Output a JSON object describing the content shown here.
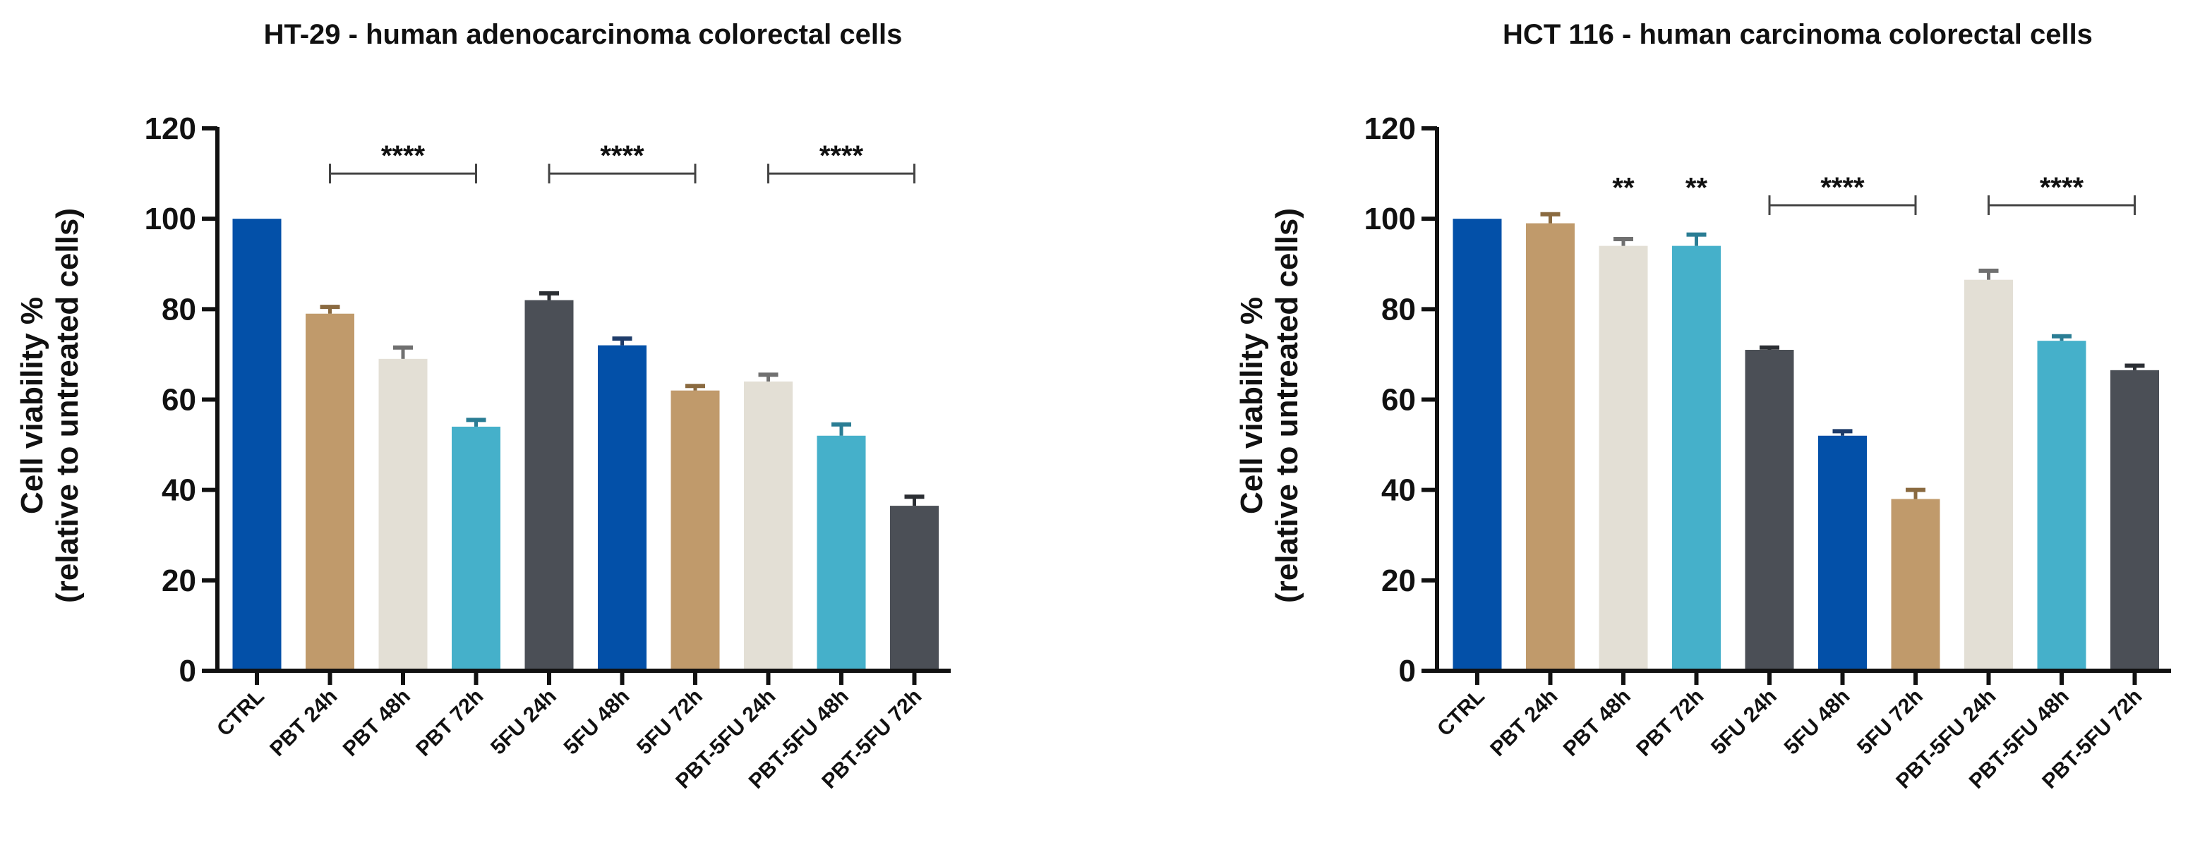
{
  "chart_data": [
    {
      "type": "bar",
      "title": "HT-29 - human adenocarcinoma colorectal cells",
      "ylabel_line1": "Cell viability %",
      "ylabel_line2": "(relative to untreated cells)",
      "xlabel": "",
      "ylim": [
        0,
        120
      ],
      "yticks": [
        0,
        20,
        40,
        60,
        80,
        100,
        120
      ],
      "categories": [
        "CTRL",
        "PBT 24h",
        "PBT 48h",
        "PBT 72h",
        "5FU 24h",
        "5FU 48h",
        "5FU 72h",
        "PBT-5FU 24h",
        "PBT-5FU 48h",
        "PBT-5FU 72h"
      ],
      "values": [
        100,
        79,
        69,
        54,
        82,
        72,
        62,
        64,
        52,
        36.5
      ],
      "errors": [
        0,
        1.5,
        2.5,
        1.5,
        1.5,
        1.5,
        1,
        1.5,
        2.5,
        2
      ],
      "colors": [
        "#0350a8",
        "#c09a6b",
        "#e3dfd5",
        "#45b0ca",
        "#4b4f56",
        "#0350a8",
        "#c09a6b",
        "#e3dfd5",
        "#45b0ca",
        "#4b4f56"
      ],
      "error_colors": [
        "#0350a8",
        "#8a6a40",
        "#707070",
        "#2a7d94",
        "#2b2e33",
        "#1e3c6a",
        "#8a6a40",
        "#707070",
        "#2a7d94",
        "#2b2e33"
      ],
      "annotations": [
        {
          "text": "****",
          "from": 1,
          "to": 3,
          "y": 110
        },
        {
          "text": "****",
          "from": 4,
          "to": 6,
          "y": 110
        },
        {
          "text": "****",
          "from": 7,
          "to": 9,
          "y": 110
        }
      ]
    },
    {
      "type": "bar",
      "title": "HCT 116 - human carcinoma colorectal cells",
      "ylabel_line1": "Cell viability %",
      "ylabel_line2": "(relative to untreated cells)",
      "xlabel": "",
      "ylim": [
        0,
        120
      ],
      "yticks": [
        0,
        20,
        40,
        60,
        80,
        100,
        120
      ],
      "categories": [
        "CTRL",
        "PBT 24h",
        "PBT 48h",
        "PBT 72h",
        "5FU 24h",
        "5FU 48h",
        "5FU 72h",
        "PBT-5FU 24h",
        "PBT-5FU 48h",
        "PBT-5FU 72h"
      ],
      "values": [
        100,
        99,
        94,
        94,
        71,
        52,
        38,
        86.5,
        73,
        66.5
      ],
      "errors": [
        0,
        2,
        1.5,
        2.5,
        0.5,
        1,
        2,
        2,
        1,
        1
      ],
      "colors": [
        "#0350a8",
        "#c09a6b",
        "#e3dfd5",
        "#45b0ca",
        "#4b4f56",
        "#0350a8",
        "#c09a6b",
        "#e3dfd5",
        "#45b0ca",
        "#4b4f56"
      ],
      "error_colors": [
        "#0350a8",
        "#8a6a40",
        "#707070",
        "#2a7d94",
        "#2b2e33",
        "#1e3c6a",
        "#8a6a40",
        "#707070",
        "#2a7d94",
        "#2b2e33"
      ],
      "annotations": [
        {
          "text": "**",
          "from": 2,
          "to": 2,
          "y": 107
        },
        {
          "text": "**",
          "from": 3,
          "to": 3,
          "y": 107
        },
        {
          "text": "****",
          "from": 4,
          "to": 6,
          "y": 103
        },
        {
          "text": "****",
          "from": 7,
          "to": 9,
          "y": 103
        }
      ]
    }
  ]
}
